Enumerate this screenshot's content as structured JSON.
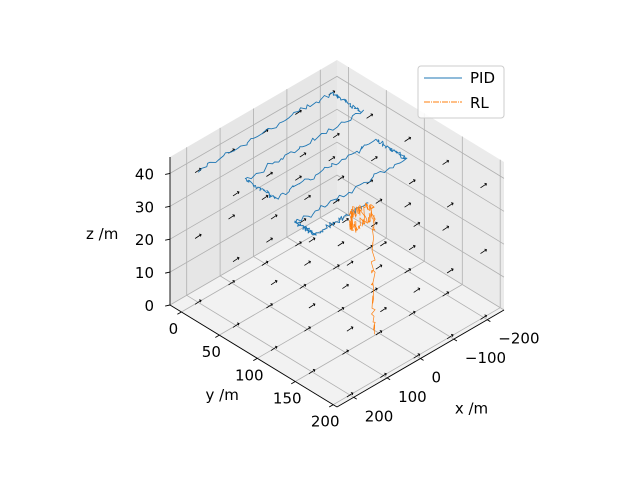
{
  "chart_data": {
    "type": "line",
    "projection": "3d",
    "title": "",
    "xlabel": "x /m",
    "ylabel": "y /m",
    "zlabel": "z /m",
    "xlim": [
      -250,
      250
    ],
    "ylim": [
      -15,
      205
    ],
    "zlim": [
      0,
      45
    ],
    "x_ticks": [
      -200,
      -100,
      0,
      100,
      200
    ],
    "y_ticks": [
      0,
      50,
      100,
      150,
      200
    ],
    "z_ticks": [
      0,
      10,
      20,
      30,
      40
    ],
    "x_tick_labels": [
      "−200",
      "−100",
      "0",
      "100",
      "200"
    ],
    "y_tick_labels": [
      "0",
      "50",
      "100",
      "150",
      "200"
    ],
    "z_tick_labels": [
      "0",
      "10",
      "20",
      "30",
      "40"
    ],
    "grid": true,
    "legend": "top-right",
    "series": [
      {
        "name": "PID",
        "color": "#1f77b4",
        "path": [
          [
            200,
            0,
            40
          ],
          [
            -200,
            0,
            40
          ],
          [
            -200,
            40,
            40
          ],
          [
            150,
            40,
            40
          ],
          [
            150,
            80,
            40
          ],
          [
            -150,
            80,
            40
          ],
          [
            -150,
            120,
            40
          ],
          [
            180,
            120,
            40
          ],
          [
            180,
            145,
            40
          ],
          [
            20,
            145,
            40
          ]
        ]
      },
      {
        "name": "RL",
        "color": "#ff7f0e",
        "path": [
          [
            5,
            145,
            0
          ],
          [
            5,
            145,
            35
          ],
          [
            70,
            145,
            35
          ],
          [
            70,
            145,
            40
          ],
          [
            5,
            145,
            38
          ]
        ]
      }
    ],
    "annotation": "wind field arrows"
  }
}
